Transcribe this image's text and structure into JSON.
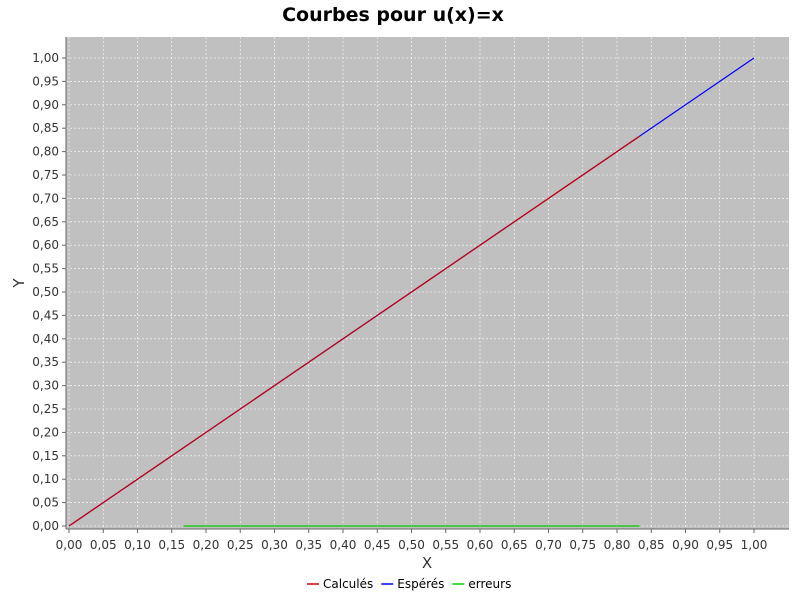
{
  "chart_data": {
    "type": "line",
    "title": "Courbes pour u(x)=x",
    "xlabel": "X",
    "ylabel": "Y",
    "xlim": [
      0,
      1.0
    ],
    "ylim": [
      0,
      1.0
    ],
    "x_ticks": [
      "0,00",
      "0,05",
      "0,10",
      "0,15",
      "0,20",
      "0,25",
      "0,30",
      "0,35",
      "0,40",
      "0,45",
      "0,50",
      "0,55",
      "0,60",
      "0,65",
      "0,70",
      "0,75",
      "0,80",
      "0,85",
      "0,90",
      "0,95",
      "1,00"
    ],
    "y_ticks": [
      "0,00",
      "0,05",
      "0,10",
      "0,15",
      "0,20",
      "0,25",
      "0,30",
      "0,35",
      "0,40",
      "0,45",
      "0,50",
      "0,55",
      "0,60",
      "0,65",
      "0,70",
      "0,75",
      "0,80",
      "0,85",
      "0,90",
      "0,95",
      "1,00"
    ],
    "grid": true,
    "legend_position": "bottom",
    "background": "#c0c0c0",
    "series": [
      {
        "name": "Calculés",
        "color": "#cc0000",
        "x": [
          0.0,
          0.833
        ],
        "y": [
          0.0,
          0.833
        ]
      },
      {
        "name": "Espérés",
        "color": "#0000ff",
        "x": [
          0.0,
          1.0
        ],
        "y": [
          0.0,
          1.0
        ]
      },
      {
        "name": "erreurs",
        "color": "#00cc00",
        "x": [
          0.167,
          0.833
        ],
        "y": [
          0.0,
          0.0
        ]
      }
    ]
  }
}
